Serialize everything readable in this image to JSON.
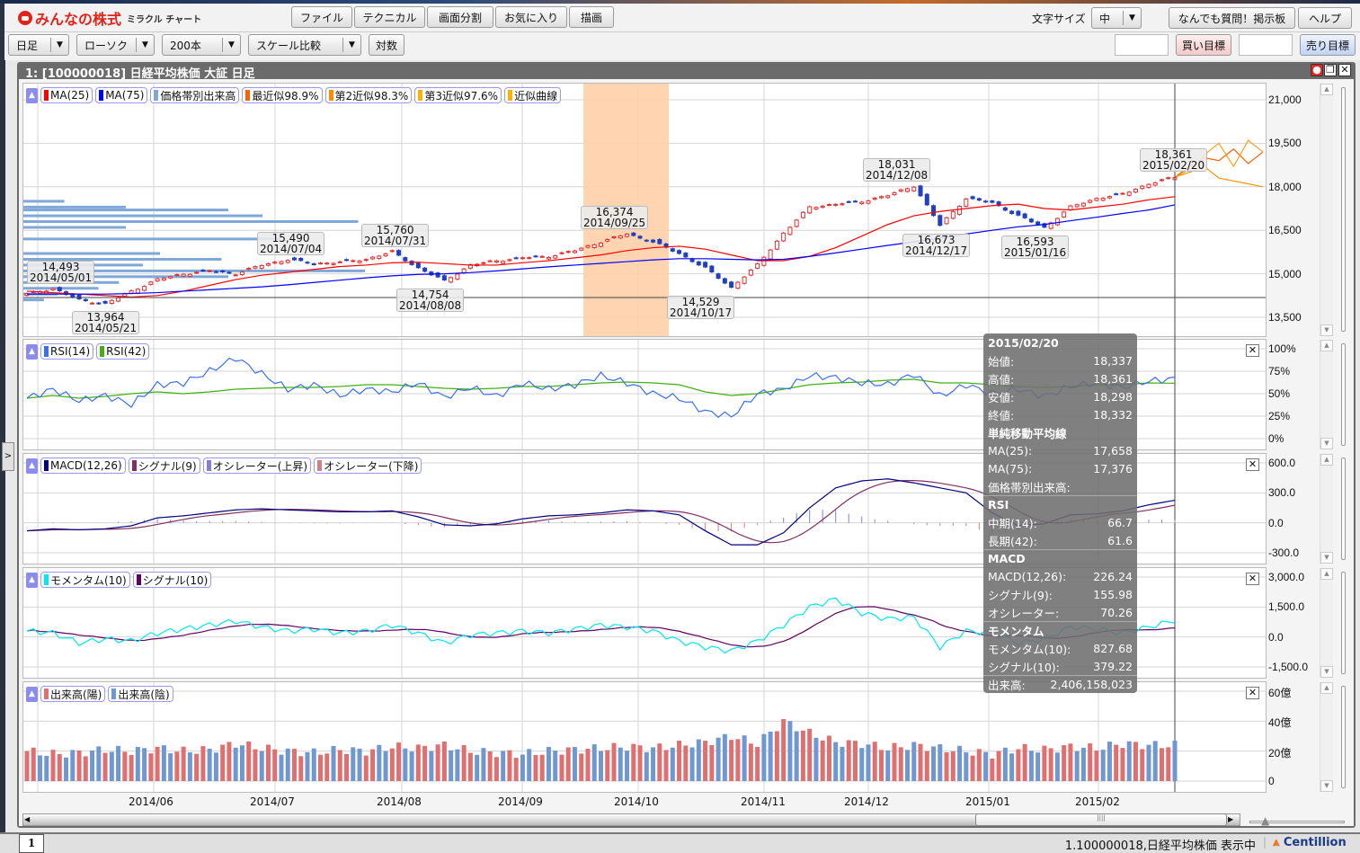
{
  "header": {
    "logo_text": "みんなの株式",
    "logo_sub": "ミラクル チャート",
    "menu": [
      "ファイル",
      "テクニカル",
      "画面分割",
      "お気に入り",
      "描画"
    ],
    "font_size_label": "文字サイズ",
    "font_size_value": "中",
    "board_button": "なんでも質問！掲示板",
    "help_button": "ヘルプ"
  },
  "toolbar": {
    "period": "日足",
    "chart_type": "ローソク",
    "bars": "200本",
    "scale": "スケール比較",
    "log_button": "対数",
    "buy_target_value": "",
    "buy_target_label": "買い目標",
    "sell_target_value": "",
    "sell_target_label": "売り目標"
  },
  "window": {
    "title": "1:  [100000018] 日経平均株価 大証 日足"
  },
  "colors": {
    "up": "#e03030",
    "down": "#2040c0",
    "ma25": "#ff0000",
    "ma75": "#0000ff",
    "rsi14": "#3a6ff0",
    "rsi42": "#44b010",
    "macd": "#000080",
    "macd_signal": "#803060",
    "osc_up": "#8080d0",
    "osc_down": "#d08080",
    "momentum": "#00e8f0",
    "momentum_signal": "#600060",
    "vol_up": "#e07070",
    "vol_down": "#7098d0",
    "highlight": "#ffd0a8",
    "approx": "#ff8c00"
  },
  "main": {
    "legend": [
      "MA(25)",
      "MA(75)",
      "価格帯別出来高",
      "最近似98.9%",
      "第2近似98.3%",
      "第3近似97.6%",
      "近似曲線"
    ],
    "legend_colors": [
      "#ff0000",
      "#0000ff",
      "#7fa7d7",
      "#ff6000",
      "#ff8c00",
      "#ffb000",
      "#ffb000"
    ],
    "y_ticks": [
      "21,000",
      "19,500",
      "18,000",
      "16,500",
      "15,000",
      "13,500"
    ],
    "annotations": [
      {
        "price": "14,493",
        "date": "2014/05/01"
      },
      {
        "price": "13,964",
        "date": "2014/05/21"
      },
      {
        "price": "15,490",
        "date": "2014/07/04"
      },
      {
        "price": "15,760",
        "date": "2014/07/31"
      },
      {
        "price": "14,754",
        "date": "2014/08/08"
      },
      {
        "price": "16,374",
        "date": "2014/09/25"
      },
      {
        "price": "14,529",
        "date": "2014/10/17"
      },
      {
        "price": "18,031",
        "date": "2014/12/08"
      },
      {
        "price": "16,673",
        "date": "2014/12/17"
      },
      {
        "price": "16,593",
        "date": "2015/01/16"
      },
      {
        "price": "18,361",
        "date": "2015/02/20"
      }
    ]
  },
  "chart_data": [
    {
      "type": "candlestick",
      "name": "日経平均株価",
      "ylim": [
        13500,
        21000
      ],
      "weekly_close": [
        14300,
        14493,
        14100,
        13964,
        14400,
        14800,
        15000,
        15100,
        15000,
        15300,
        15490,
        15350,
        15400,
        15500,
        15760,
        15200,
        14754,
        15300,
        15450,
        15550,
        15600,
        15800,
        16100,
        16374,
        16100,
        15700,
        15200,
        14529,
        15300,
        16400,
        17300,
        17400,
        17500,
        17700,
        18031,
        16673,
        17600,
        17450,
        17000,
        16593,
        17300,
        17600,
        17750,
        18100,
        18332
      ],
      "ma25": [
        14400,
        14350,
        14300,
        14250,
        14200,
        14250,
        14400,
        14600,
        14800,
        14950,
        15050,
        15150,
        15250,
        15300,
        15380,
        15400,
        15350,
        15300,
        15300,
        15380,
        15450,
        15550,
        15650,
        15800,
        15900,
        15950,
        15850,
        15650,
        15450,
        15450,
        15600,
        15900,
        16300,
        16700,
        17000,
        17150,
        17250,
        17350,
        17400,
        17250,
        17200,
        17300,
        17400,
        17550,
        17658
      ],
      "ma75": [
        14300,
        14300,
        14300,
        14300,
        14320,
        14350,
        14400,
        14450,
        14500,
        14550,
        14620,
        14700,
        14780,
        14860,
        14930,
        14980,
        15000,
        15040,
        15100,
        15170,
        15240,
        15300,
        15360,
        15420,
        15480,
        15520,
        15520,
        15500,
        15480,
        15500,
        15600,
        15720,
        15850,
        15980,
        16100,
        16230,
        16370,
        16500,
        16620,
        16700,
        16830,
        16950,
        17080,
        17200,
        17376
      ],
      "approx_curves": [
        [
          18332,
          18700,
          19000,
          18900,
          19300,
          18800,
          19200
        ],
        [
          18332,
          18600,
          19100,
          19500,
          18700,
          19600,
          19200
        ],
        [
          18332,
          18500,
          18700,
          18300,
          18200,
          18100,
          18000
        ]
      ],
      "price_volume_profile": [
        {
          "price": 17500,
          "rel": 0.12
        },
        {
          "price": 17300,
          "rel": 0.3
        },
        {
          "price": 17200,
          "rel": 0.6
        },
        {
          "price": 17000,
          "rel": 0.7
        },
        {
          "price": 16800,
          "rel": 0.98
        },
        {
          "price": 16600,
          "rel": 0.3
        },
        {
          "price": 16200,
          "rel": 0.75
        },
        {
          "price": 15700,
          "rel": 0.4
        },
        {
          "price": 15500,
          "rel": 0.58
        },
        {
          "price": 15300,
          "rel": 0.35
        },
        {
          "price": 15100,
          "rel": 1.0
        },
        {
          "price": 14900,
          "rel": 0.6
        },
        {
          "price": 14700,
          "rel": 0.28
        },
        {
          "price": 14500,
          "rel": 0.22
        },
        {
          "price": 14300,
          "rel": 0.1
        },
        {
          "price": 14100,
          "rel": 0.06
        }
      ],
      "highlight_range": [
        "2014/09/11",
        "2014/10/08"
      ]
    },
    {
      "type": "line",
      "legend": [
        "RSI(14)",
        "RSI(42)"
      ],
      "ylim": [
        0,
        100
      ],
      "y_ticks": [
        "100%",
        "75%",
        "50%",
        "25%",
        "0%"
      ],
      "series": [
        {
          "name": "RSI(14)",
          "values": [
            45,
            55,
            42,
            48,
            38,
            60,
            62,
            75,
            90,
            72,
            55,
            60,
            48,
            55,
            52,
            62,
            46,
            57,
            47,
            62,
            55,
            60,
            70,
            62,
            50,
            45,
            30,
            25,
            50,
            55,
            70,
            68,
            62,
            60,
            72,
            47,
            60,
            50,
            55,
            47,
            58,
            62,
            57,
            64,
            66.7
          ]
        },
        {
          "name": "RSI(42)",
          "values": [
            45,
            48,
            45,
            47,
            50,
            52,
            50,
            52,
            55,
            56,
            57,
            57,
            58,
            60,
            60,
            58,
            56,
            55,
            56,
            58,
            58,
            60,
            62,
            63,
            62,
            60,
            52,
            48,
            50,
            55,
            60,
            62,
            63,
            65,
            66,
            62,
            62,
            60,
            58,
            57,
            58,
            60,
            60,
            62,
            61.6
          ]
        }
      ]
    },
    {
      "type": "line+bar",
      "legend": [
        "MACD(12,26)",
        "シグナル(9)",
        "オシレーター(上昇)",
        "オシレーター(下降)"
      ],
      "ylim": [
        -300,
        600
      ],
      "y_ticks": [
        "600.0",
        "300.0",
        "0.0",
        "-300.0"
      ],
      "series": [
        {
          "name": "MACD(12,26)",
          "values": [
            -80,
            -60,
            -70,
            -60,
            -30,
            50,
            70,
            100,
            130,
            140,
            130,
            120,
            110,
            110,
            120,
            60,
            -20,
            -30,
            -10,
            40,
            70,
            80,
            100,
            130,
            120,
            80,
            -80,
            -220,
            -220,
            -100,
            150,
            350,
            420,
            440,
            400,
            350,
            300,
            100,
            -30,
            -10,
            80,
            90,
            120,
            180,
            226.24
          ]
        }
      ]
    },
    {
      "type": "line",
      "legend": [
        "モメンタム(10)",
        "シグナル(10)"
      ],
      "ylim": [
        -1500,
        3000
      ],
      "y_ticks": [
        "3,000.0",
        "1,500.0",
        "0.0",
        "-1,500.0"
      ],
      "series": [
        {
          "name": "モメンタム(10)",
          "values": [
            300,
            200,
            -300,
            -100,
            -200,
            200,
            400,
            600,
            800,
            500,
            300,
            400,
            200,
            300,
            600,
            200,
            -300,
            100,
            200,
            300,
            200,
            400,
            600,
            500,
            300,
            -200,
            -500,
            -700,
            -200,
            600,
            1500,
            1900,
            1200,
            900,
            1000,
            -500,
            300,
            200,
            -300,
            -100,
            500,
            400,
            200,
            500,
            827.68
          ]
        }
      ]
    },
    {
      "type": "bar",
      "legend": [
        "出来高(陽)",
        "出来高(陰)"
      ],
      "ylim": [
        0,
        60
      ],
      "y_ticks": [
        "60億",
        "40億",
        "20億",
        "0"
      ],
      "series": [
        {
          "name": "出来高",
          "unit": "億",
          "values": [
            20,
            18,
            19,
            21,
            20,
            22,
            20,
            21,
            25,
            22,
            20,
            19,
            21,
            20,
            23,
            22,
            24,
            20,
            19,
            18,
            20,
            21,
            22,
            23,
            22,
            24,
            26,
            30,
            25,
            40,
            32,
            26,
            25,
            22,
            24,
            22,
            20,
            18,
            22,
            21,
            23,
            22,
            25,
            24,
            24.06
          ]
        }
      ]
    }
  ],
  "x_ticks": [
    "2014/06",
    "2014/07",
    "2014/08",
    "2014/09",
    "2014/10",
    "2014/11",
    "2014/12",
    "2015/01",
    "2015/02"
  ],
  "tooltip": {
    "date": "2015/02/20",
    "ohlc": [
      {
        "label": "始値:",
        "value": "18,337"
      },
      {
        "label": "高値:",
        "value": "18,361"
      },
      {
        "label": "安値:",
        "value": "18,298"
      },
      {
        "label": "終値:",
        "value": "18,332"
      }
    ],
    "ma_title": "単純移動平均線",
    "ma": [
      {
        "label": "MA(25):",
        "value": "17,658"
      },
      {
        "label": "MA(75):",
        "value": "17,376"
      },
      {
        "label": "価格帯別出来高:",
        "value": ""
      }
    ],
    "rsi_title": "RSI",
    "rsi": [
      {
        "label": "中期(14):",
        "value": "66.7"
      },
      {
        "label": "長期(42):",
        "value": "61.6"
      }
    ],
    "macd_title": "MACD",
    "macd": [
      {
        "label": "MACD(12,26):",
        "value": "226.24"
      },
      {
        "label": "シグナル(9):",
        "value": "155.98"
      },
      {
        "label": "オシレーター:",
        "value": "70.26"
      }
    ],
    "mom_title": "モメンタム",
    "mom": [
      {
        "label": "モメンタム(10):",
        "value": "827.68"
      },
      {
        "label": "シグナル(10):",
        "value": "379.22"
      }
    ],
    "volume": {
      "label": "出来高:",
      "value": "2,406,158,023"
    }
  },
  "status": {
    "tab": "1",
    "text": "1.100000018,日経平均株価 表示中",
    "brand": "Centillion"
  }
}
